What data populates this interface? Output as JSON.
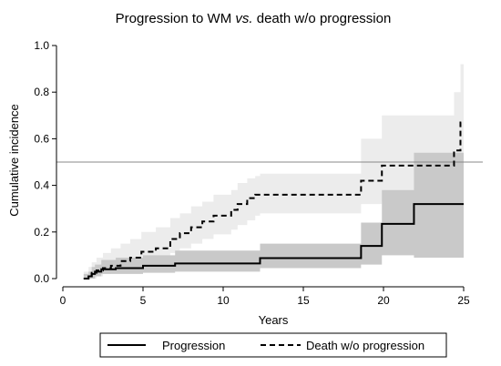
{
  "chart_data": {
    "type": "line",
    "step": true,
    "title_main": "Progression to WM ",
    "title_italic": "vs.",
    "title_rest": " death w/o progression",
    "xlabel": "Years",
    "ylabel": "Cumulative incidence",
    "xlim": [
      0,
      26
    ],
    "ylim": [
      0,
      1.05
    ],
    "x_ticks": [
      0,
      5,
      10,
      15,
      20,
      25
    ],
    "y_ticks": [
      0.0,
      0.2,
      0.4,
      0.6,
      0.8,
      1.0
    ],
    "y_tick_labels": [
      "0.0",
      "0.2",
      "0.4",
      "0.6",
      "0.8",
      "1.0"
    ],
    "reference_line_y": 0.5,
    "grid": false,
    "legend_position": "bottom",
    "series": [
      {
        "name": "Progression",
        "style": "solid",
        "color": "#000000",
        "band_color": "#c9c9c9",
        "x": [
          1.3,
          1.6,
          1.8,
          2.0,
          2.4,
          3.3,
          5.0,
          7.0,
          12.3,
          18.6,
          19.9,
          21.9,
          25.0
        ],
        "y": [
          0.0,
          0.01,
          0.02,
          0.03,
          0.04,
          0.045,
          0.055,
          0.065,
          0.088,
          0.14,
          0.235,
          0.32,
          0.32
        ],
        "lower": [
          0.0,
          0.0,
          0.0,
          0.01,
          0.02,
          0.02,
          0.025,
          0.03,
          0.045,
          0.06,
          0.1,
          0.09,
          0.09
        ],
        "upper": [
          0.02,
          0.03,
          0.05,
          0.06,
          0.08,
          0.09,
          0.1,
          0.12,
          0.15,
          0.24,
          0.38,
          0.54,
          0.57
        ]
      },
      {
        "name": "Death w/o progression",
        "style": "dashed",
        "color": "#000000",
        "band_color": "#ececec",
        "x": [
          1.3,
          1.6,
          1.8,
          2.1,
          2.5,
          3.0,
          3.6,
          4.2,
          4.9,
          5.8,
          6.7,
          7.3,
          8.0,
          8.7,
          9.4,
          10.5,
          10.9,
          11.5,
          12.0,
          12.3,
          17.9,
          18.6,
          19.9,
          24.4,
          24.8,
          25.0
        ],
        "y": [
          0.0,
          0.01,
          0.025,
          0.035,
          0.045,
          0.055,
          0.075,
          0.09,
          0.115,
          0.13,
          0.17,
          0.195,
          0.22,
          0.245,
          0.27,
          0.295,
          0.32,
          0.345,
          0.36,
          0.36,
          0.36,
          0.42,
          0.485,
          0.55,
          0.67,
          0.67
        ],
        "lower": [
          0.0,
          0.0,
          0.0,
          0.01,
          0.02,
          0.03,
          0.04,
          0.055,
          0.07,
          0.09,
          0.11,
          0.13,
          0.15,
          0.17,
          0.19,
          0.21,
          0.23,
          0.25,
          0.27,
          0.28,
          0.28,
          0.32,
          0.33,
          0.34,
          0.38,
          0.38
        ],
        "upper": [
          0.03,
          0.05,
          0.07,
          0.09,
          0.11,
          0.13,
          0.15,
          0.17,
          0.2,
          0.22,
          0.26,
          0.28,
          0.31,
          0.33,
          0.36,
          0.38,
          0.41,
          0.43,
          0.44,
          0.45,
          0.45,
          0.6,
          0.7,
          0.8,
          0.92,
          0.93
        ]
      }
    ]
  }
}
